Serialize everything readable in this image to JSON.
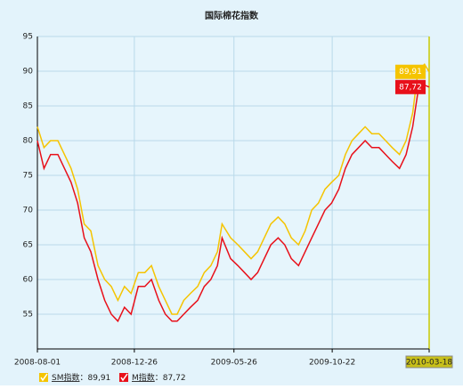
{
  "chart_data": {
    "type": "line",
    "title": "国际棉花指数",
    "x": [
      "2008-08-01",
      "2008-08-11",
      "2008-08-21",
      "2008-09-01",
      "2008-09-11",
      "2008-09-21",
      "2008-10-01",
      "2008-10-11",
      "2008-10-21",
      "2008-11-01",
      "2008-11-11",
      "2008-11-21",
      "2008-12-01",
      "2008-12-11",
      "2008-12-21",
      "2009-01-01",
      "2009-01-11",
      "2009-01-21",
      "2009-02-01",
      "2009-02-11",
      "2009-02-21",
      "2009-03-01",
      "2009-03-11",
      "2009-03-21",
      "2009-04-01",
      "2009-04-11",
      "2009-04-21",
      "2009-05-01",
      "2009-05-08",
      "2009-05-21",
      "2009-06-01",
      "2009-06-11",
      "2009-06-21",
      "2009-07-01",
      "2009-07-11",
      "2009-07-21",
      "2009-08-01",
      "2009-08-11",
      "2009-08-21",
      "2009-09-01",
      "2009-09-11",
      "2009-09-21",
      "2009-10-01",
      "2009-10-11",
      "2009-10-21",
      "2009-11-01",
      "2009-11-11",
      "2009-11-21",
      "2009-12-01",
      "2009-12-11",
      "2009-12-21",
      "2010-01-01",
      "2010-01-11",
      "2010-01-21",
      "2010-02-01",
      "2010-02-11",
      "2010-02-21",
      "2010-03-01",
      "2010-03-11",
      "2010-03-18"
    ],
    "series": [
      {
        "name": "SM指数",
        "color": "#f5c400",
        "end_label": "89,91",
        "values": [
          82,
          79,
          80,
          80,
          78,
          76,
          73,
          68,
          67,
          62,
          60,
          59,
          57,
          59,
          58,
          61,
          61,
          62,
          59,
          57,
          55,
          55,
          57,
          58,
          59,
          61,
          62,
          64,
          68,
          66,
          65,
          64,
          63,
          64,
          66,
          68,
          69,
          68,
          66,
          65,
          67,
          70,
          71,
          73,
          74,
          75,
          78,
          80,
          81,
          82,
          81,
          81,
          80,
          79,
          78,
          80,
          84,
          90,
          91,
          89.91
        ]
      },
      {
        "name": "M指数",
        "color": "#e8101a",
        "end_label": "87,72",
        "values": [
          80,
          76,
          78,
          78,
          76,
          74,
          71,
          66,
          64,
          60,
          57,
          55,
          54,
          56,
          55,
          59,
          59,
          60,
          57,
          55,
          54,
          54,
          55,
          56,
          57,
          59,
          60,
          62,
          66,
          63,
          62,
          61,
          60,
          61,
          63,
          65,
          66,
          65,
          63,
          62,
          64,
          66,
          68,
          70,
          71,
          73,
          76,
          78,
          79,
          80,
          79,
          79,
          78,
          77,
          76,
          78,
          82,
          87,
          88,
          87.72
        ]
      }
    ],
    "legend_separator": "：",
    "xlim": [
      "2008-08-01",
      "2010-03-18"
    ],
    "xticks": [
      "2008-08-01",
      "2008-12-26",
      "2009-05-26",
      "2009-10-22",
      "2010-03-18"
    ],
    "highlight_xtick": "2010-03-18",
    "ylim": [
      50,
      95
    ],
    "yticks": [
      55,
      60,
      65,
      70,
      75,
      80,
      85,
      90,
      95
    ],
    "grid": true
  }
}
